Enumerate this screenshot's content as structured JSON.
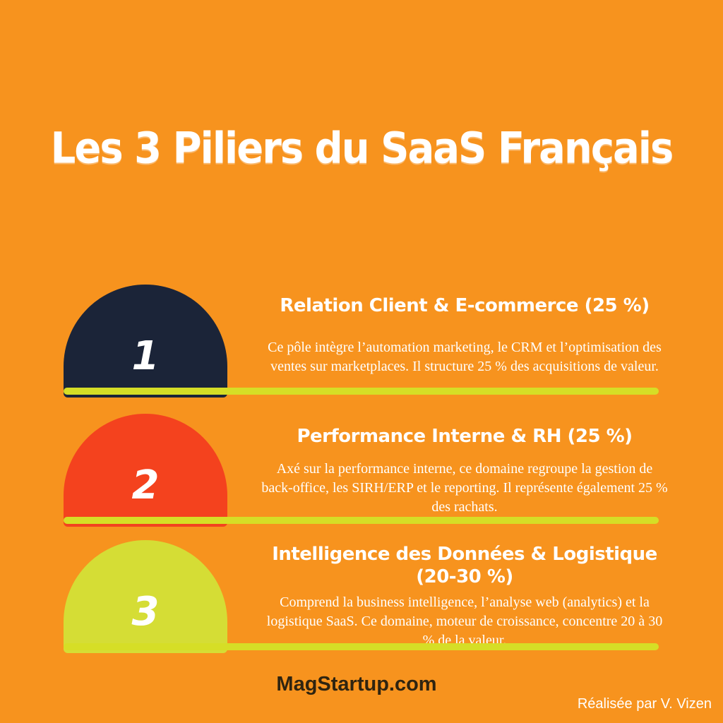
{
  "page": {
    "title": "Les 3 Piliers du SaaS Français",
    "footer_site": "MagStartup.com",
    "credit": "Réalisée par V. Vizen"
  },
  "colors": {
    "background": "#F7931E",
    "bar": "#D6DE26",
    "title_text": "#FFFFFF",
    "body_text": "#FFFFFF",
    "footer_text": "#2F2410"
  },
  "pillars": [
    {
      "number": "1",
      "color": "#1B2438",
      "heading": "Relation Client & E-commerce (25 %)",
      "body": "Ce pôle intègre l’automation marketing, le CRM et l’optimisation des ventes sur marketplaces. Il structure 25 % des acquisitions de valeur."
    },
    {
      "number": "2",
      "color": "#F4421E",
      "heading": "Performance Interne & RH (25 %)",
      "body": "Axé sur la performance interne, ce domaine regroupe la gestion de back-office, les SIRH/ERP et le reporting. Il représente également 25 % des rachats."
    },
    {
      "number": "3",
      "color": "#D5DD35",
      "heading": "Intelligence des Données & Logistique (20-30 %)",
      "body": "Comprend la business intelligence, l’analyse web (analytics) et la logistique SaaS. Ce domaine, moteur de croissance, concentre 20 à 30 % de la valeur."
    }
  ]
}
